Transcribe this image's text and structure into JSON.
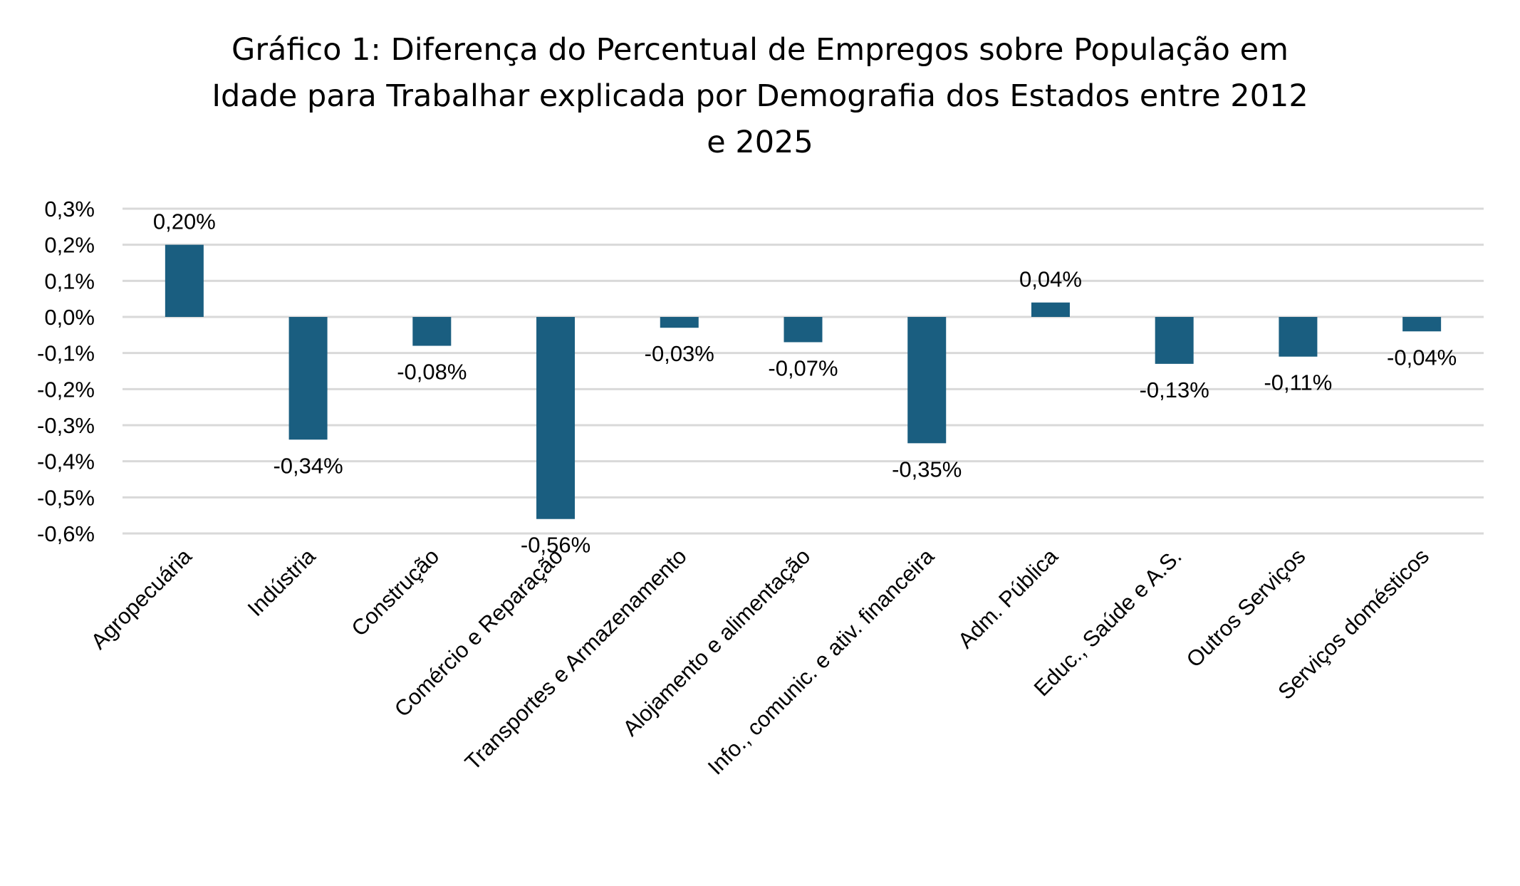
{
  "chart_data": {
    "type": "bar",
    "title_lines": [
      "Gráfico 1: Diferença do Percentual de Empregos sobre População em",
      "Idade para Trabalhar explicada por Demografia dos Estados entre 2012",
      "e 2025"
    ],
    "title": "Gráfico 1: Diferença do Percentual de Empregos sobre População em Idade para Trabalhar explicada por Demografia dos Estados entre 2012 e 2025",
    "xlabel": "",
    "ylabel": "",
    "categories": [
      "Agropecuária",
      "Indústria",
      "Construção",
      "Comércio e Reparação",
      "Transportes e Armazenamento",
      "Alojamento e alimentação",
      "Info., comunic. e ativ. financeira",
      "Adm. Pública",
      "Educ., Saúde e A.S.",
      "Outros Serviços",
      "Serviços domésticos"
    ],
    "values": [
      0.2,
      -0.34,
      -0.08,
      -0.56,
      -0.03,
      -0.07,
      -0.35,
      0.04,
      -0.13,
      -0.11,
      -0.04
    ],
    "data_labels": [
      "0,20%",
      "-0,34%",
      "-0,08%",
      "-0,56%",
      "-0,03%",
      "-0,07%",
      "-0,35%",
      "0,04%",
      "-0,13%",
      "-0,11%",
      "-0,04%"
    ],
    "ylim": [
      -0.6,
      0.3
    ],
    "yticks": [
      0.3,
      0.2,
      0.1,
      0.0,
      -0.1,
      -0.2,
      -0.3,
      -0.4,
      -0.5,
      -0.6
    ],
    "ytick_labels": [
      "0,3%",
      "0,2%",
      "0,1%",
      "0,0%",
      "-0,1%",
      "-0,2%",
      "-0,3%",
      "-0,4%",
      "-0,5%",
      "-0,6%"
    ],
    "unit": "%",
    "grid": true,
    "legend": "none",
    "bar_color": "#1a5e80",
    "grid_color": "#d9d9d9"
  }
}
